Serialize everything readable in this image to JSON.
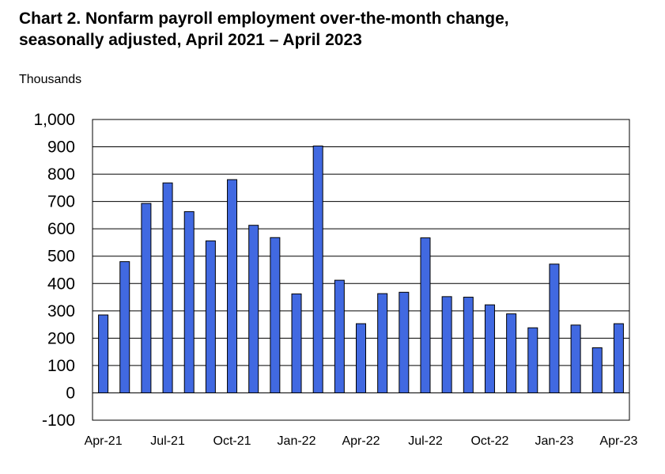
{
  "chart_data": {
    "type": "bar",
    "title": "Chart 2. Nonfarm payroll employment over-the-month change, seasonally adjusted, April 2021 – April 2023",
    "title_line1": "Chart 2. Nonfarm payroll employment over-the-month change,",
    "title_line2": "seasonally adjusted, April 2021 – April 2023",
    "ylabel": "Thousands",
    "xlabel": "",
    "ylim": [
      -100,
      1000
    ],
    "yticks": [
      "-100",
      "0",
      "100",
      "200",
      "300",
      "400",
      "500",
      "600",
      "700",
      "800",
      "900",
      "1,000"
    ],
    "ytick_values": [
      -100,
      0,
      100,
      200,
      300,
      400,
      500,
      600,
      700,
      800,
      900,
      1000
    ],
    "xtick_labels": [
      "Apr-21",
      "Jul-21",
      "Oct-21",
      "Jan-22",
      "Apr-22",
      "Jul-22",
      "Oct-22",
      "Jan-23",
      "Apr-23"
    ],
    "xtick_indices": [
      0,
      3,
      6,
      9,
      12,
      15,
      18,
      21,
      24
    ],
    "categories": [
      "Apr-21",
      "May-21",
      "Jun-21",
      "Jul-21",
      "Aug-21",
      "Sep-21",
      "Oct-21",
      "Nov-21",
      "Dec-21",
      "Jan-22",
      "Feb-22",
      "Mar-22",
      "Apr-22",
      "May-22",
      "Jun-22",
      "Jul-22",
      "Aug-22",
      "Sep-22",
      "Oct-22",
      "Nov-22",
      "Dec-22",
      "Jan-23",
      "Feb-23",
      "Mar-23",
      "Apr-23"
    ],
    "values": [
      285,
      480,
      693,
      768,
      663,
      556,
      780,
      613,
      568,
      362,
      903,
      412,
      253,
      363,
      368,
      567,
      352,
      350,
      322,
      289,
      238,
      471,
      248,
      165,
      253
    ],
    "bar_color": "#4169E1",
    "grid": true,
    "legend": "none"
  }
}
